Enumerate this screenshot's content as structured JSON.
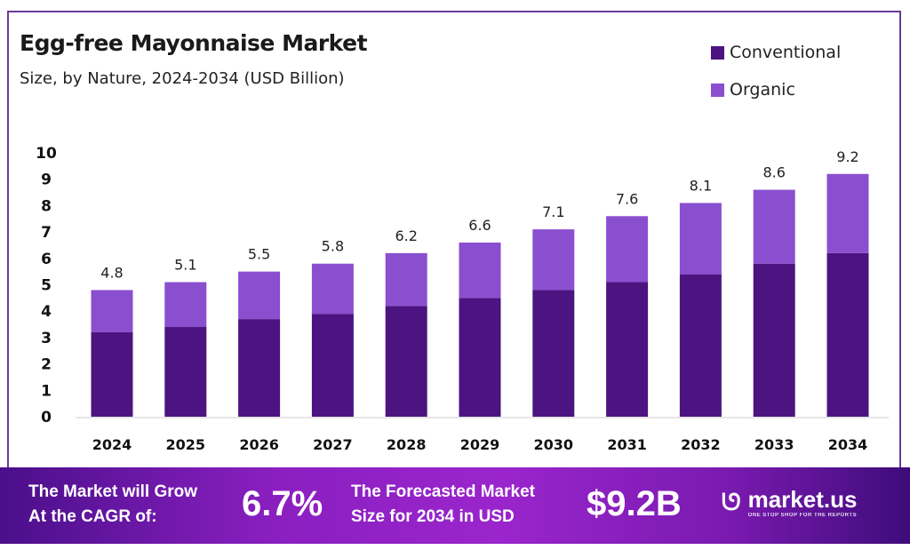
{
  "chart_data": {
    "type": "bar",
    "stacked": true,
    "title": "Egg-free Mayonnaise Market",
    "subtitle": "Size, by Nature, 2024-2034 (USD Billion)",
    "xlabel": "",
    "ylabel": "",
    "ylim": [
      0,
      10
    ],
    "yticks": [
      0,
      1,
      2,
      3,
      4,
      5,
      6,
      7,
      8,
      9,
      10
    ],
    "grid": false,
    "legend_position": "top-right",
    "categories": [
      "2024",
      "2025",
      "2026",
      "2027",
      "2028",
      "2029",
      "2030",
      "2031",
      "2032",
      "2033",
      "2034"
    ],
    "series": [
      {
        "name": "Conventional",
        "color": "#4b1480",
        "values": [
          3.2,
          3.4,
          3.7,
          3.9,
          4.2,
          4.5,
          4.8,
          5.1,
          5.4,
          5.8,
          6.2
        ]
      },
      {
        "name": "Organic",
        "color": "#8a4fcf",
        "values": [
          1.6,
          1.7,
          1.8,
          1.9,
          2.0,
          2.1,
          2.3,
          2.5,
          2.7,
          2.8,
          3.0
        ]
      }
    ],
    "totals": [
      "4.8",
      "5.1",
      "5.5",
      "5.8",
      "6.2",
      "6.6",
      "7.1",
      "7.6",
      "8.1",
      "8.6",
      "9.2"
    ]
  },
  "footer": {
    "cagr_text_1": "The Market will Grow",
    "cagr_text_2": "At the CAGR of:",
    "cagr_value": "6.7%",
    "forecast_text_1": "The Forecasted Market",
    "forecast_text_2": "Size for 2034 in USD",
    "forecast_value": "$9.2B",
    "logo_name": "market.us",
    "logo_tagline": "ONE STOP SHOP FOR THE REPORTS"
  }
}
